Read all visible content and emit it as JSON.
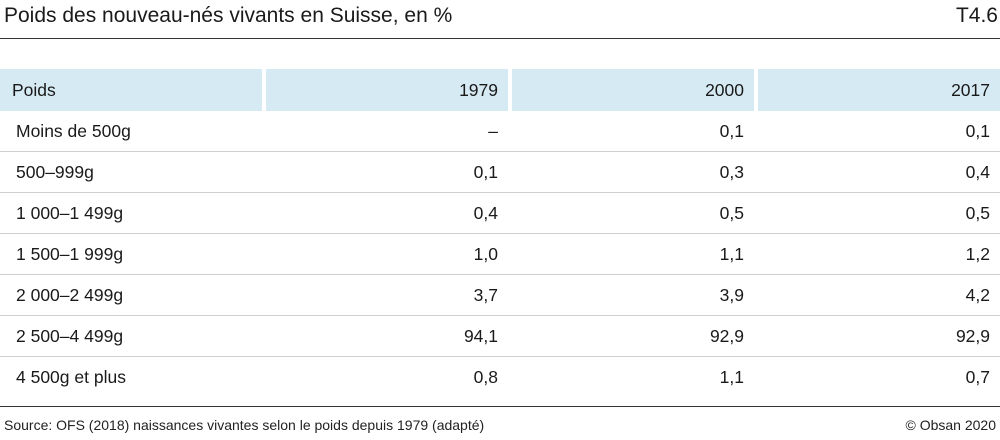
{
  "header": {
    "title": "Poids des nouveau-nés vivants en Suisse, en %",
    "code": "T4.6"
  },
  "table": {
    "columns": [
      "Poids",
      "1979",
      "2000",
      "2017"
    ],
    "rows": [
      {
        "label": "Moins de 500g",
        "values": [
          "–",
          "0,1",
          "0,1"
        ]
      },
      {
        "label": "500–999g",
        "values": [
          "0,1",
          "0,3",
          "0,4"
        ]
      },
      {
        "label": "1 000–1 499g",
        "values": [
          "0,4",
          "0,5",
          "0,5"
        ]
      },
      {
        "label": "1 500–1 999g",
        "values": [
          "1,0",
          "1,1",
          "1,2"
        ]
      },
      {
        "label": "2 000–2 499g",
        "values": [
          "3,7",
          "3,9",
          "4,2"
        ]
      },
      {
        "label": "2 500–4 499g",
        "values": [
          "94,1",
          "92,9",
          "92,9"
        ]
      },
      {
        "label": "4 500g et plus",
        "values": [
          "0,8",
          "1,1",
          "0,7"
        ]
      }
    ]
  },
  "footer": {
    "source": "Source: OFS (2018) naissances vivantes selon le poids depuis 1979 (adapté)",
    "credit": "© Obsan 2020"
  },
  "colors": {
    "header_bg": "#d6eaf3",
    "rule": "#333333",
    "row_divider": "#cfcfcf"
  }
}
